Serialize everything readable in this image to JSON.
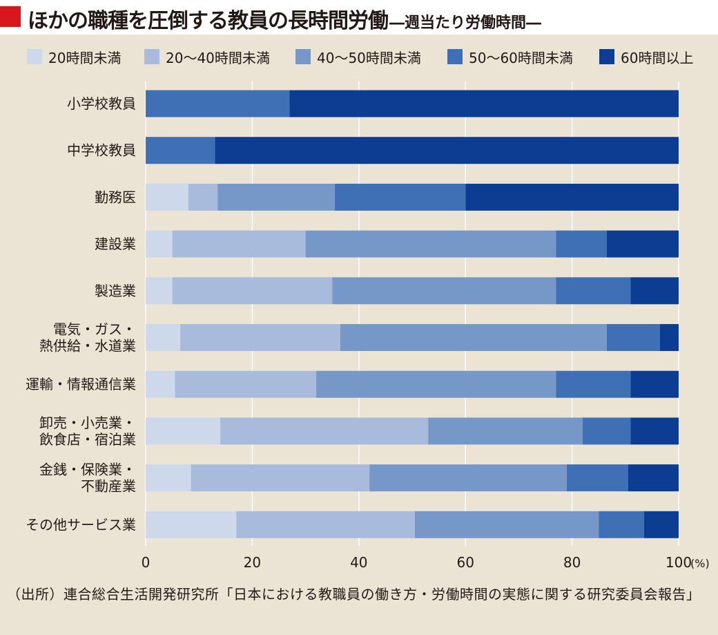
{
  "header": {
    "title": "ほかの職種を圧倒する教員の長時間労働",
    "subtitle": "―週当たり労働時間―"
  },
  "colors": {
    "accent": "#d7161d",
    "background": "#ebe4d4",
    "grid": "#ffffff",
    "series": [
      "#cdd9eb",
      "#a8bbdc",
      "#7698c9",
      "#3f6fb4",
      "#0c3d93"
    ]
  },
  "chart_data": {
    "type": "bar",
    "orientation": "horizontal",
    "stacked": true,
    "legend_position": "top",
    "grid": true,
    "xlim": [
      0,
      100
    ],
    "xticks": [
      "0",
      "20",
      "40",
      "60",
      "80",
      "100"
    ],
    "x_unit": "(%)",
    "categories": [
      [
        "小学校教員"
      ],
      [
        "中学校教員"
      ],
      [
        "勤務医"
      ],
      [
        "建設業"
      ],
      [
        "製造業"
      ],
      [
        "電気・ガス・",
        "熱供給・水道業"
      ],
      [
        "運輸・情報通信業"
      ],
      [
        "卸売・小売業・",
        "飲食店・宿泊業"
      ],
      [
        "金銭・保険業・",
        "不動産業"
      ],
      [
        "その他サービス業"
      ]
    ],
    "series": [
      {
        "name": "20時間未満",
        "values": [
          0,
          0,
          8,
          5,
          5,
          6.5,
          5.5,
          14,
          8.5,
          17
        ]
      },
      {
        "name": "20〜40時間未満",
        "values": [
          0,
          0,
          5.5,
          25,
          30,
          30,
          26.5,
          39,
          33.5,
          33.5
        ]
      },
      {
        "name": "40〜50時間未満",
        "values": [
          0,
          0,
          22,
          47,
          42,
          50,
          45,
          29,
          37,
          34.5
        ]
      },
      {
        "name": "50〜60時間未満",
        "values": [
          27,
          13,
          24.5,
          9.5,
          14,
          10,
          14,
          9,
          11.5,
          8.5
        ]
      },
      {
        "name": "60時間以上",
        "values": [
          73,
          87,
          40,
          13.5,
          9,
          3.5,
          9,
          9,
          9.5,
          6.5
        ]
      }
    ]
  },
  "source": "（出所）連合総合生活開発研究所「日本における教職員の働き方・労働時間の実態に関する研究委員会報告」"
}
